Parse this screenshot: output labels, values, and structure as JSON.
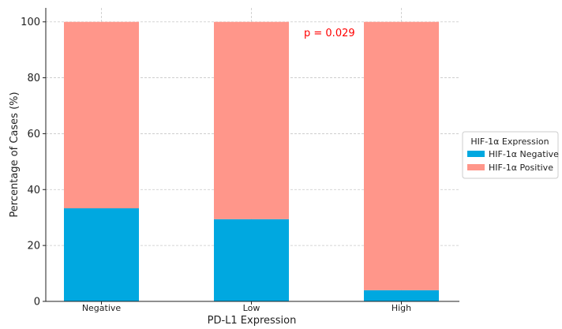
{
  "chart_data": {
    "type": "bar",
    "stacked": true,
    "categories": [
      "Negative",
      "Low",
      "High"
    ],
    "series": [
      {
        "name": "HIF-1α Negative",
        "color": "#00a8e0",
        "values": [
          33.3,
          29.4,
          4.0
        ]
      },
      {
        "name": "HIF-1α Positive",
        "color": "#ff968a",
        "values": [
          66.7,
          70.6,
          96.0
        ]
      }
    ],
    "xlabel": "PD-L1 Expression",
    "ylabel": "Percentage of Cases (%)",
    "ylim": [
      0,
      105
    ],
    "yticks": [
      0,
      20,
      40,
      60,
      80,
      100
    ],
    "grid": true,
    "annotation": {
      "text": "p = 0.029",
      "color": "#ff0000"
    },
    "legend": {
      "title": "HIF-1α Expression",
      "placement": "right"
    }
  }
}
